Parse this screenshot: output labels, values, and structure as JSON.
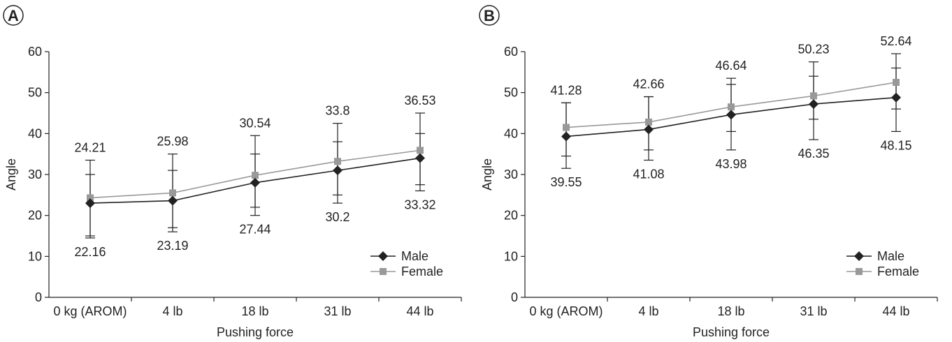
{
  "chart_data": [
    {
      "type": "line",
      "panel_label": "A",
      "categories": [
        "0 kg (AROM)",
        "4 lb",
        "18 lb",
        "31 lb",
        "44 lb"
      ],
      "xlabel": "Pushing force",
      "ylabel": "Angle",
      "ylim": [
        0,
        60
      ],
      "yticks": [
        0,
        10,
        20,
        30,
        40,
        50,
        60
      ],
      "grid": false,
      "legend": "bottom-right",
      "series": [
        {
          "name": "Male",
          "color": "#222222",
          "marker": "diamond",
          "values": [
            23.0,
            23.6,
            28.0,
            31.0,
            34.0
          ],
          "err_low": [
            15.0,
            17.0,
            22.0,
            25.0,
            27.5
          ],
          "err_high": [
            30.0,
            31.0,
            35.0,
            38.0,
            40.0
          ],
          "labels": [
            "22.16",
            "23.19",
            "27.44",
            "30.2",
            "33.32"
          ]
        },
        {
          "name": "Female",
          "color": "#999999",
          "marker": "square",
          "values": [
            24.3,
            25.5,
            29.8,
            33.2,
            35.9
          ],
          "err_low": [
            14.5,
            16.0,
            20.0,
            23.0,
            26.0
          ],
          "err_high": [
            33.5,
            35.0,
            39.5,
            42.5,
            45.0
          ],
          "labels": [
            "24.21",
            "25.98",
            "30.54",
            "33.8",
            "36.53"
          ]
        }
      ]
    },
    {
      "type": "line",
      "panel_label": "B",
      "categories": [
        "0 kg (AROM)",
        "4 lb",
        "18 lb",
        "31 lb",
        "44 lb"
      ],
      "xlabel": "Pushing force",
      "ylabel": "Angle",
      "ylim": [
        0,
        60
      ],
      "yticks": [
        0,
        10,
        20,
        30,
        40,
        50,
        60
      ],
      "grid": false,
      "legend": "bottom-right",
      "series": [
        {
          "name": "Male",
          "color": "#222222",
          "marker": "diamond",
          "values": [
            39.3,
            41.0,
            44.6,
            47.2,
            48.8
          ],
          "err_low": [
            31.5,
            33.5,
            36.0,
            38.5,
            40.5
          ],
          "err_high": [
            47.5,
            49.0,
            52.0,
            54.0,
            56.0
          ],
          "labels": [
            "39.55",
            "41.08",
            "43.98",
            "46.35",
            "48.15"
          ]
        },
        {
          "name": "Female",
          "color": "#999999",
          "marker": "square",
          "values": [
            41.5,
            42.8,
            46.5,
            49.2,
            52.5
          ],
          "err_low": [
            34.5,
            36.0,
            40.5,
            43.5,
            46.0
          ],
          "err_high": [
            47.5,
            49.0,
            53.5,
            57.5,
            59.5
          ],
          "labels": [
            "41.28",
            "42.66",
            "46.64",
            "50.23",
            "52.64"
          ]
        }
      ]
    }
  ]
}
